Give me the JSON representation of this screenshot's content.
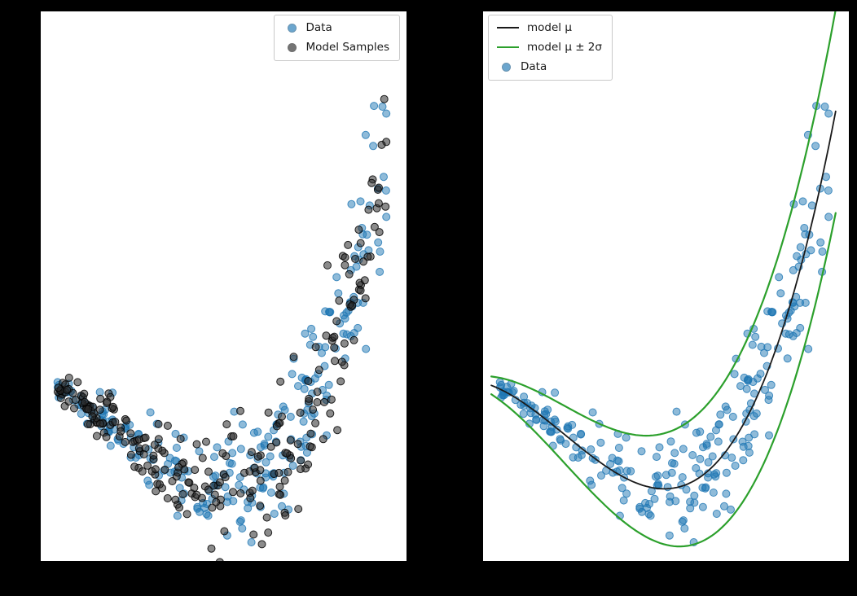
{
  "figure": {
    "background": "#000000",
    "panel_background": "#ffffff",
    "accent_blue": "#1f77b4",
    "accent_green": "#2ca02c",
    "accent_black": "#1a1a1a"
  },
  "chart_data": [
    {
      "panel": "left",
      "type": "scatter",
      "title": "",
      "xlabel": "",
      "ylabel": "",
      "xlim": [
        -1.1,
        1.12
      ],
      "ylim": [
        -1.0,
        3.95
      ],
      "x_data_range": [
        -1,
        1
      ],
      "curve_x_range": [
        -1.05,
        1.04
      ],
      "model_function": {
        "c3": 1.1,
        "c2": 2.0,
        "c1": 0,
        "c0": -0.35
      },
      "noise_sigma": {
        "base": 0.05,
        "slope": 0.2
      },
      "grid": false,
      "series": [
        {
          "name": "Data",
          "type": "scatter",
          "n": 260,
          "seed": 12345,
          "color": "#1f77b4",
          "edge": "#1f77b4",
          "alpha": 0.5,
          "radius": 4.5
        },
        {
          "name": "Model Samples",
          "type": "scatter",
          "n": 260,
          "seed": 999,
          "color": "#2b2b2b",
          "edge": "#000000",
          "alpha": 0.55,
          "radius": 4.5
        }
      ],
      "legend": {
        "location": "upper right",
        "entries": [
          {
            "label": "Data",
            "marker": "dot",
            "color": "#1f77b4"
          },
          {
            "label": "Model Samples",
            "marker": "dot",
            "color": "#2b2b2b"
          }
        ]
      }
    },
    {
      "panel": "right",
      "type": "scatter",
      "title": "",
      "xlabel": "",
      "ylabel": "",
      "xlim": [
        -1.1,
        1.12
      ],
      "ylim": [
        -1.0,
        3.95
      ],
      "x_data_range": [
        -1,
        1
      ],
      "curve_x_range": [
        -1.05,
        1.04
      ],
      "model_function": {
        "c3": 1.1,
        "c2": 2.0,
        "c1": 0,
        "c0": -0.35
      },
      "noise_sigma": {
        "base": 0.05,
        "slope": 0.2
      },
      "grid": false,
      "series": [
        {
          "name": "Data",
          "type": "scatter",
          "n": 260,
          "seed": 12345,
          "color": "#1f77b4",
          "edge": "#1f77b4",
          "alpha": 0.5,
          "radius": 4.5
        },
        {
          "name": "model μ",
          "type": "line",
          "color": "#1a1a1a",
          "width": 1.8
        },
        {
          "name": "model μ ± 2σ",
          "type": "band",
          "color": "#2ca02c",
          "width": 2.2
        }
      ],
      "legend": {
        "location": "upper left",
        "entries": [
          {
            "label": "model μ",
            "marker": "line",
            "color": "#1a1a1a"
          },
          {
            "label": "model μ ± 2σ",
            "marker": "line",
            "color": "#2ca02c"
          },
          {
            "label": "Data",
            "marker": "dot",
            "color": "#1f77b4"
          }
        ]
      }
    }
  ]
}
